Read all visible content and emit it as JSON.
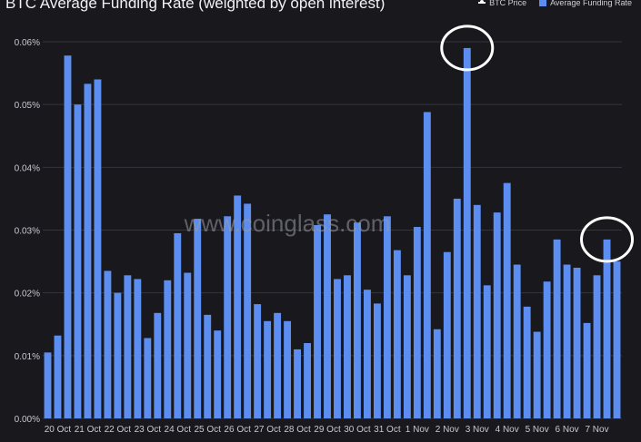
{
  "chart_data": {
    "type": "bar",
    "title": "BTC Average Funding Rate  (weighted by open interest)",
    "legend": [
      "BTC Price",
      "Average Funding Rate"
    ],
    "legend_placement": "top-right",
    "ylim": [
      0,
      0.0006
    ],
    "yticks": [
      "0.00%",
      "0.01%",
      "0.02%",
      "0.03%",
      "0.04%",
      "0.05%",
      "0.06%"
    ],
    "xticks": [
      "20 Oct",
      "21 Oct",
      "22 Oct",
      "23 Oct",
      "24 Oct",
      "25 Oct",
      "26 Oct",
      "27 Oct",
      "28 Oct",
      "29 Oct",
      "30 Oct",
      "31 Oct",
      "1 Nov",
      "2 Nov",
      "3 Nov",
      "4 Nov",
      "5 Nov",
      "6 Nov",
      "7 Nov"
    ],
    "grid": true,
    "series": [
      {
        "name": "Average Funding Rate",
        "color": "#5b8ef0",
        "values": [
          0.000105,
          0.000132,
          0.000578,
          0.0005,
          0.000533,
          0.00054,
          0.000235,
          0.0002,
          0.000228,
          0.000222,
          0.000128,
          0.000168,
          0.00022,
          0.000295,
          0.000232,
          0.000318,
          0.000165,
          0.00014,
          0.000322,
          0.000355,
          0.000342,
          0.000182,
          0.000155,
          0.000168,
          0.000155,
          0.00011,
          0.00012,
          0.000308,
          0.000325,
          0.000222,
          0.000228,
          0.000312,
          0.000205,
          0.000183,
          0.000322,
          0.000268,
          0.000228,
          0.000305,
          0.000488,
          0.000142,
          0.000265,
          0.00035,
          0.00059,
          0.00034,
          0.000212,
          0.000328,
          0.000375,
          0.000245,
          0.000178,
          0.000138,
          0.000218,
          0.000285,
          0.000245,
          0.00024,
          0.000152,
          0.000228,
          0.000285,
          0.00025
        ]
      }
    ],
    "highlighted_bars": [
      42,
      56
    ],
    "watermark": "www.coinglass.com"
  }
}
